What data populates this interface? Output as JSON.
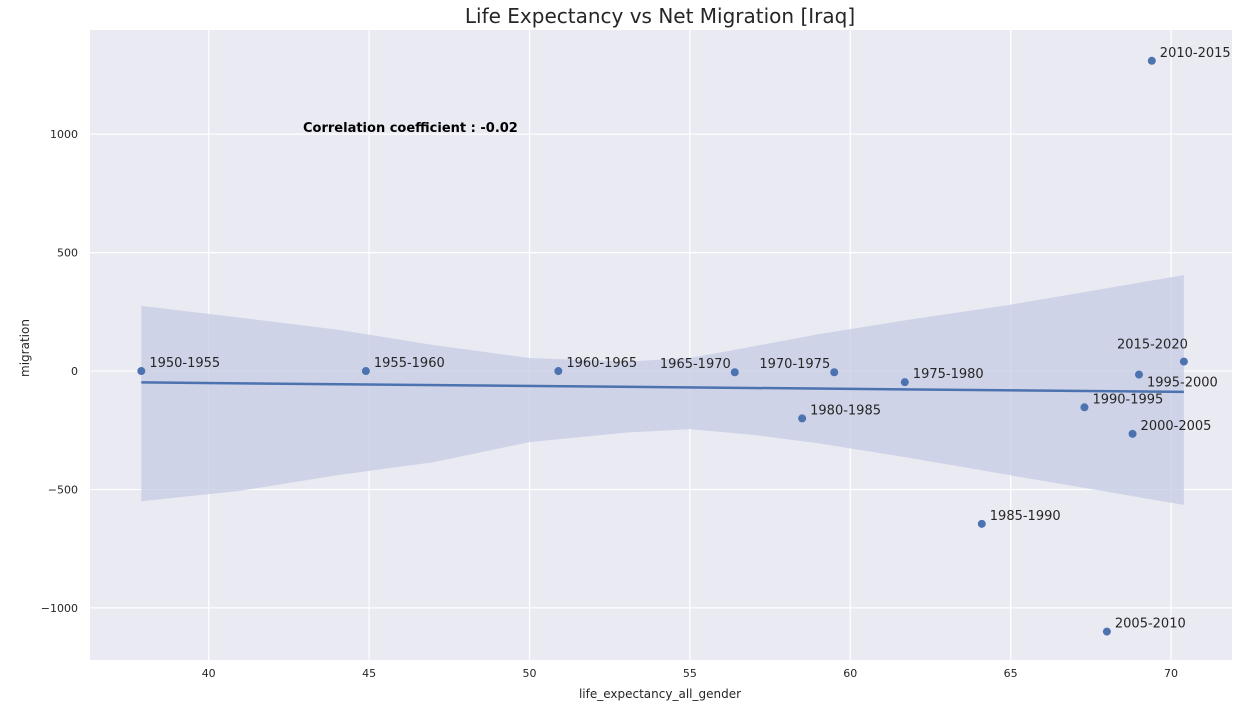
{
  "chart_data": {
    "type": "scatter",
    "title": "Life Expectancy vs Net Migration [Iraq]",
    "xlabel": "life_expectancy_all_gender",
    "ylabel": "migration",
    "xlim": [
      36.3,
      71.9
    ],
    "ylim": [
      -1220,
      1440
    ],
    "xticks": [
      40,
      45,
      50,
      55,
      60,
      65,
      70
    ],
    "yticks": [
      -1000,
      -500,
      0,
      500,
      1000
    ],
    "ytick_labels": [
      "−1000",
      "−500",
      "0",
      "500",
      "1000"
    ],
    "grid": true,
    "annotation": "Correlation coefficient : -0.02",
    "colors": {
      "background": "#eaeaf2",
      "grid": "#ffffff",
      "point": "#4c72b0",
      "line": "#4c72b0",
      "band": "#c4cbe3"
    },
    "points": [
      {
        "label": "1950-1955",
        "x": 37.9,
        "y": 0
      },
      {
        "label": "1955-1960",
        "x": 44.9,
        "y": 0
      },
      {
        "label": "1960-1965",
        "x": 50.9,
        "y": 0
      },
      {
        "label": "1965-1970",
        "x": 56.4,
        "y": -5
      },
      {
        "label": "1970-1975",
        "x": 59.5,
        "y": -5
      },
      {
        "label": "1975-1980",
        "x": 61.7,
        "y": -47
      },
      {
        "label": "1980-1985",
        "x": 58.5,
        "y": -200
      },
      {
        "label": "1985-1990",
        "x": 64.1,
        "y": -645
      },
      {
        "label": "1990-1995",
        "x": 67.3,
        "y": -153
      },
      {
        "label": "1995-2000",
        "x": 69.0,
        "y": -15
      },
      {
        "label": "2000-2005",
        "x": 68.8,
        "y": -265
      },
      {
        "label": "2005-2010",
        "x": 68.0,
        "y": -1100
      },
      {
        "label": "2010-2015",
        "x": 69.4,
        "y": 1310
      },
      {
        "label": "2015-2020",
        "x": 70.4,
        "y": 40
      }
    ],
    "regression": {
      "x": [
        37.9,
        70.4
      ],
      "y": [
        -48,
        -88
      ]
    },
    "confidence_band": {
      "x": [
        37.9,
        41,
        44,
        47,
        50,
        53,
        55,
        57,
        59,
        62,
        65,
        68,
        70.4
      ],
      "upper": [
        275,
        225,
        175,
        110,
        55,
        40,
        55,
        105,
        155,
        220,
        280,
        350,
        405
      ],
      "lower": [
        -550,
        -505,
        -440,
        -385,
        -300,
        -260,
        -245,
        -270,
        -305,
        -370,
        -440,
        -510,
        -565
      ]
    }
  }
}
